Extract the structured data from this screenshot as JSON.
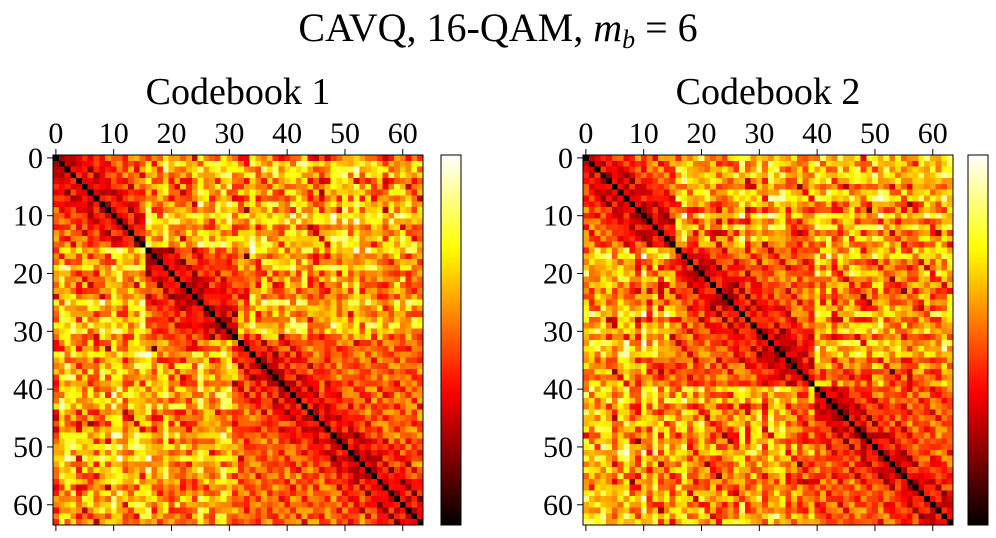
{
  "figure": {
    "title_prefix": "CAVQ, 16-QAM, ",
    "title_var": "m",
    "title_sub": "b",
    "title_suffix": " = 6"
  },
  "chart_data": [
    {
      "type": "heatmap",
      "title": "Codebook 1",
      "rows": 64,
      "cols": 64,
      "x_ticks": [
        0,
        10,
        20,
        30,
        40,
        50,
        60
      ],
      "y_ticks": [
        0,
        10,
        20,
        30,
        40,
        50,
        60
      ],
      "x_tick_labels": [
        "0",
        "10",
        "20",
        "30",
        "40",
        "50",
        "60"
      ],
      "y_tick_labels": [
        "0",
        "10",
        "20",
        "30",
        "40",
        "50",
        "60"
      ],
      "x_axis_position": "top",
      "colormap": "hot",
      "colorbar": true,
      "diagonal": "zero (black)",
      "block_structure": [
        [
          0,
          15
        ],
        [
          16,
          31
        ],
        [
          32,
          63
        ]
      ],
      "note": "symmetric pairwise-distance style matrix; values read qualitatively (dark = low, white = high)"
    },
    {
      "type": "heatmap",
      "title": "Codebook 2",
      "rows": 64,
      "cols": 64,
      "x_ticks": [
        0,
        10,
        20,
        30,
        40,
        50,
        60
      ],
      "y_ticks": [
        0,
        10,
        20,
        30,
        40,
        50,
        60
      ],
      "x_tick_labels": [
        "0",
        "10",
        "20",
        "30",
        "40",
        "50",
        "60"
      ],
      "y_tick_labels": [
        "0",
        "10",
        "20",
        "30",
        "40",
        "50",
        "60"
      ],
      "x_axis_position": "top",
      "colormap": "hot",
      "colorbar": true,
      "diagonal": "zero (black)",
      "block_structure": [
        [
          0,
          15
        ],
        [
          16,
          39
        ],
        [
          40,
          63
        ]
      ],
      "note": "symmetric pairwise-distance style matrix; values read qualitatively (dark = low, white = high)"
    }
  ]
}
